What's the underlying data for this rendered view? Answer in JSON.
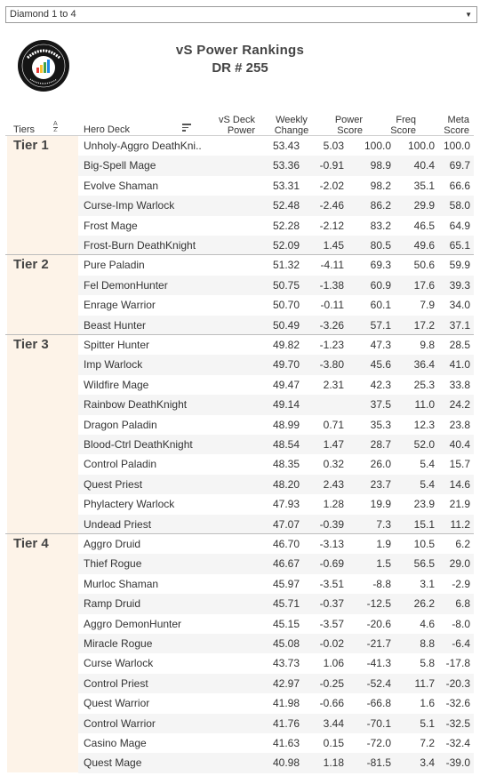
{
  "filter": {
    "selected": "Diamond 1 to 4",
    "arrow_icon": "caret-down-icon"
  },
  "logo": {
    "text": "DATA REAPER REPORT"
  },
  "title": {
    "line1": "vS Power Rankings",
    "line2": "DR # 255"
  },
  "headers": {
    "tiers": "Tiers",
    "hero_deck": "Hero Deck",
    "power_l1": "vS Deck",
    "power_l2": "Power",
    "change_l1": "Weekly",
    "change_l2": "Change",
    "pscore_l1": "Power",
    "pscore_l2": "Score",
    "freq_l1": "Freq",
    "freq_l2": "Score",
    "meta_l1": "Meta",
    "meta_l2": "Score",
    "sort_a": "A",
    "sort_z": "Z"
  },
  "tiers": [
    {
      "label": "Tier 1",
      "rows": [
        {
          "deck": "Unholy-Aggro DeathKni..",
          "power": "53.43",
          "change": "5.03",
          "pscore": "100.0",
          "freq": "100.0",
          "meta": "100.0"
        },
        {
          "deck": "Big-Spell Mage",
          "power": "53.36",
          "change": "-0.91",
          "pscore": "98.9",
          "freq": "40.4",
          "meta": "69.7"
        },
        {
          "deck": "Evolve Shaman",
          "power": "53.31",
          "change": "-2.02",
          "pscore": "98.2",
          "freq": "35.1",
          "meta": "66.6"
        },
        {
          "deck": "Curse-Imp Warlock",
          "power": "52.48",
          "change": "-2.46",
          "pscore": "86.2",
          "freq": "29.9",
          "meta": "58.0"
        },
        {
          "deck": "Frost Mage",
          "power": "52.28",
          "change": "-2.12",
          "pscore": "83.2",
          "freq": "46.5",
          "meta": "64.9"
        },
        {
          "deck": "Frost-Burn DeathKnight",
          "power": "52.09",
          "change": "1.45",
          "pscore": "80.5",
          "freq": "49.6",
          "meta": "65.1"
        }
      ]
    },
    {
      "label": "Tier 2",
      "rows": [
        {
          "deck": "Pure Paladin",
          "power": "51.32",
          "change": "-4.11",
          "pscore": "69.3",
          "freq": "50.6",
          "meta": "59.9"
        },
        {
          "deck": "Fel DemonHunter",
          "power": "50.75",
          "change": "-1.38",
          "pscore": "60.9",
          "freq": "17.6",
          "meta": "39.3"
        },
        {
          "deck": "Enrage Warrior",
          "power": "50.70",
          "change": "-0.11",
          "pscore": "60.1",
          "freq": "7.9",
          "meta": "34.0"
        },
        {
          "deck": "Beast Hunter",
          "power": "50.49",
          "change": "-3.26",
          "pscore": "57.1",
          "freq": "17.2",
          "meta": "37.1"
        }
      ]
    },
    {
      "label": "Tier 3",
      "rows": [
        {
          "deck": "Spitter Hunter",
          "power": "49.82",
          "change": "-1.23",
          "pscore": "47.3",
          "freq": "9.8",
          "meta": "28.5"
        },
        {
          "deck": "Imp Warlock",
          "power": "49.70",
          "change": "-3.80",
          "pscore": "45.6",
          "freq": "36.4",
          "meta": "41.0"
        },
        {
          "deck": "Wildfire Mage",
          "power": "49.47",
          "change": "2.31",
          "pscore": "42.3",
          "freq": "25.3",
          "meta": "33.8"
        },
        {
          "deck": "Rainbow DeathKnight",
          "power": "49.14",
          "change": "",
          "pscore": "37.5",
          "freq": "11.0",
          "meta": "24.2"
        },
        {
          "deck": "Dragon Paladin",
          "power": "48.99",
          "change": "0.71",
          "pscore": "35.3",
          "freq": "12.3",
          "meta": "23.8"
        },
        {
          "deck": "Blood-Ctrl DeathKnight",
          "power": "48.54",
          "change": "1.47",
          "pscore": "28.7",
          "freq": "52.0",
          "meta": "40.4"
        },
        {
          "deck": "Control Paladin",
          "power": "48.35",
          "change": "0.32",
          "pscore": "26.0",
          "freq": "5.4",
          "meta": "15.7"
        },
        {
          "deck": "Quest Priest",
          "power": "48.20",
          "change": "2.43",
          "pscore": "23.7",
          "freq": "5.4",
          "meta": "14.6"
        },
        {
          "deck": "Phylactery Warlock",
          "power": "47.93",
          "change": "1.28",
          "pscore": "19.9",
          "freq": "23.9",
          "meta": "21.9"
        },
        {
          "deck": "Undead Priest",
          "power": "47.07",
          "change": "-0.39",
          "pscore": "7.3",
          "freq": "15.1",
          "meta": "11.2"
        }
      ]
    },
    {
      "label": "Tier 4",
      "rows": [
        {
          "deck": "Aggro Druid",
          "power": "46.70",
          "change": "-3.13",
          "pscore": "1.9",
          "freq": "10.5",
          "meta": "6.2"
        },
        {
          "deck": "Thief Rogue",
          "power": "46.67",
          "change": "-0.69",
          "pscore": "1.5",
          "freq": "56.5",
          "meta": "29.0"
        },
        {
          "deck": "Murloc Shaman",
          "power": "45.97",
          "change": "-3.51",
          "pscore": "-8.8",
          "freq": "3.1",
          "meta": "-2.9"
        },
        {
          "deck": "Ramp Druid",
          "power": "45.71",
          "change": "-0.37",
          "pscore": "-12.5",
          "freq": "26.2",
          "meta": "6.8"
        },
        {
          "deck": "Aggro DemonHunter",
          "power": "45.15",
          "change": "-3.57",
          "pscore": "-20.6",
          "freq": "4.6",
          "meta": "-8.0"
        },
        {
          "deck": "Miracle Rogue",
          "power": "45.08",
          "change": "-0.02",
          "pscore": "-21.7",
          "freq": "8.8",
          "meta": "-6.4"
        },
        {
          "deck": "Curse Warlock",
          "power": "43.73",
          "change": "1.06",
          "pscore": "-41.3",
          "freq": "5.8",
          "meta": "-17.8"
        },
        {
          "deck": "Control Priest",
          "power": "42.97",
          "change": "-0.25",
          "pscore": "-52.4",
          "freq": "11.7",
          "meta": "-20.3"
        },
        {
          "deck": "Quest Warrior",
          "power": "41.98",
          "change": "-0.66",
          "pscore": "-66.8",
          "freq": "1.6",
          "meta": "-32.6"
        },
        {
          "deck": "Control Warrior",
          "power": "41.76",
          "change": "3.44",
          "pscore": "-70.1",
          "freq": "5.1",
          "meta": "-32.5"
        },
        {
          "deck": "Casino Mage",
          "power": "41.63",
          "change": "0.15",
          "pscore": "-72.0",
          "freq": "7.2",
          "meta": "-32.4"
        },
        {
          "deck": "Quest Mage",
          "power": "40.98",
          "change": "1.18",
          "pscore": "-81.5",
          "freq": "3.4",
          "meta": "-39.0"
        }
      ]
    }
  ]
}
